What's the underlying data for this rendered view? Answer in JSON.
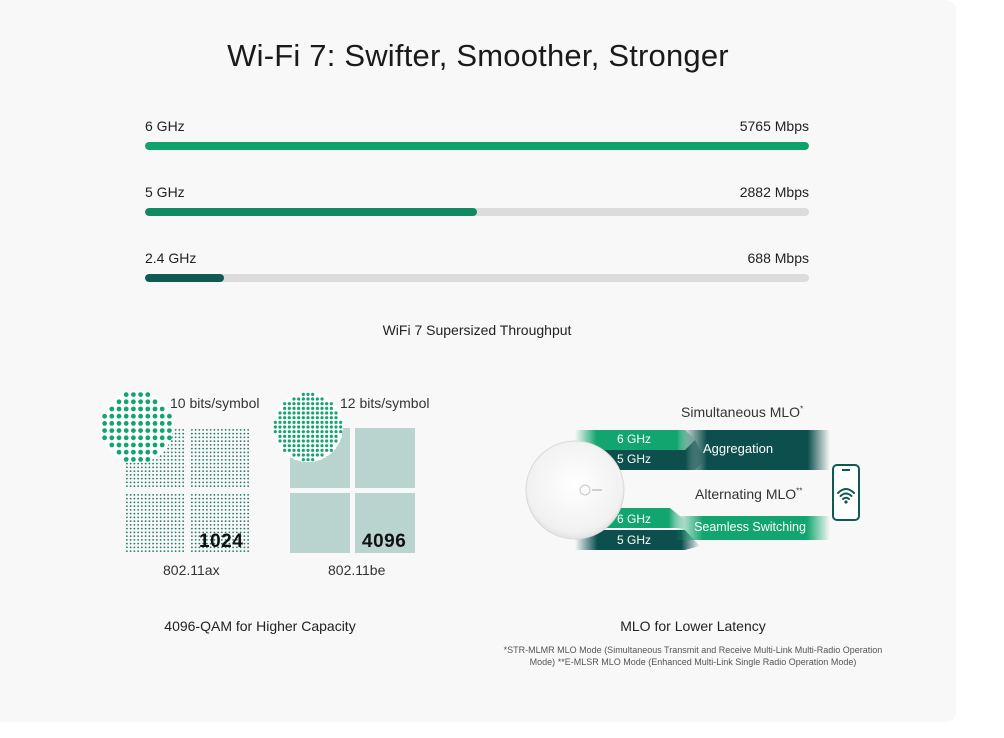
{
  "title": "Wi-Fi 7: Swifter, Smoother, Stronger",
  "throughput": {
    "caption": "WiFi 7 Supersized Throughput",
    "max_mbps": 5765,
    "bands": [
      {
        "band": "6 GHz",
        "value_label": "5765  Mbps",
        "mbps": 5765,
        "color": "#0ea36a"
      },
      {
        "band": "5 GHz",
        "value_label": "2882 Mbps",
        "mbps": 2882,
        "color": "#108a63"
      },
      {
        "band": "2.4 GHz",
        "value_label": "688 Mbps",
        "mbps": 688,
        "color": "#0f5a53"
      }
    ]
  },
  "qam": {
    "caption": "4096-QAM for Higher Capacity",
    "left": {
      "bits": "10 bits/symbol",
      "number": "1024",
      "standard": "802.11ax"
    },
    "right": {
      "bits": "12 bits/symbol",
      "number": "4096",
      "standard": "802.11be"
    }
  },
  "mlo": {
    "caption": "MLO for Lower Latency",
    "simultaneous_label": "Simultaneous MLO",
    "simultaneous_mark": "*",
    "alternating_label": "Alternating MLO",
    "alternating_mark": "**",
    "band_6": "6 GHz",
    "band_5": "5 GHz",
    "aggregation": "Aggregation",
    "switching": "Seamless Switching",
    "footnote_1": "*STR-MLMR MLO Mode (Simultaneous Transmit and Receive Multi-Link Multi-Radio Operation Mode)",
    "footnote_2": "**E-MLSR MLO Mode (Enhanced Multi-Link Single Radio Operation Mode)",
    "colors": {
      "light": "#13a56f",
      "dark": "#0c4f4c"
    }
  }
}
